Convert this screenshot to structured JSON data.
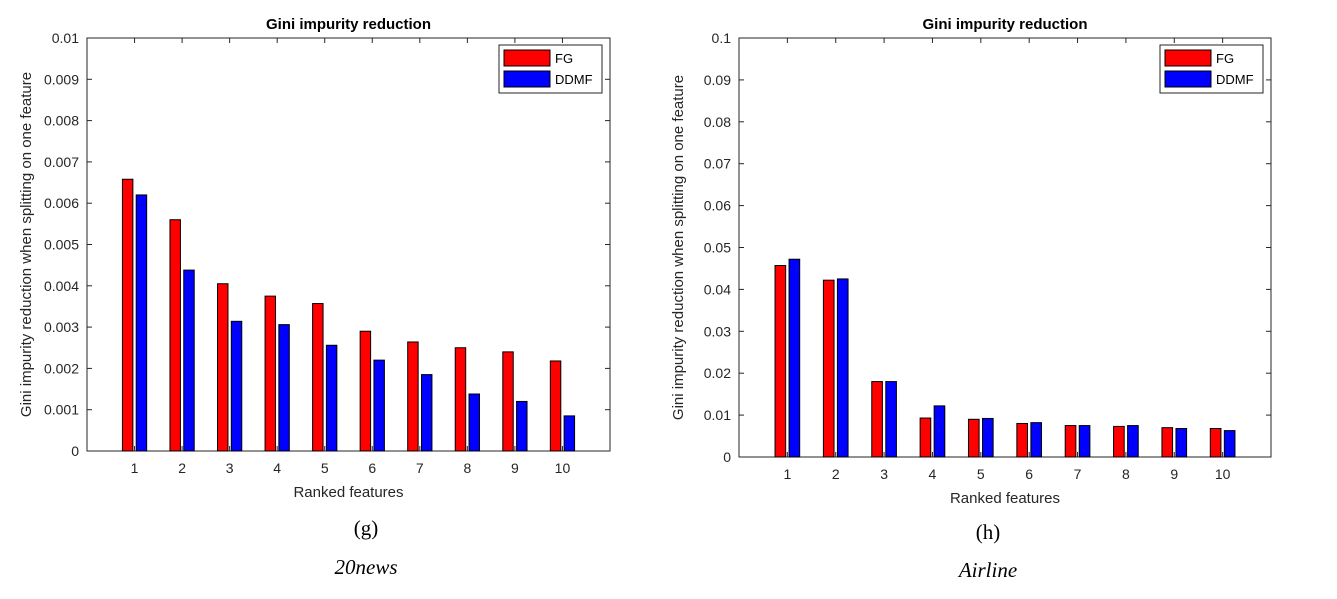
{
  "chart_data": [
    {
      "type": "bar",
      "title": "Gini impurity reduction",
      "xlabel": "Ranked features",
      "ylabel": "Gini impurity reduction when splitting on one feature",
      "categories": [
        "1",
        "2",
        "3",
        "4",
        "5",
        "6",
        "7",
        "8",
        "9",
        "10"
      ],
      "ylim": [
        0,
        0.01
      ],
      "yticks": [
        "0",
        "0.001",
        "0.002",
        "0.003",
        "0.004",
        "0.005",
        "0.006",
        "0.007",
        "0.008",
        "0.009",
        "0.01"
      ],
      "legend_position": "top-right",
      "series": [
        {
          "name": "FG",
          "color": "#ff0000",
          "values": [
            0.00658,
            0.0056,
            0.00405,
            0.00375,
            0.00357,
            0.0029,
            0.00264,
            0.0025,
            0.0024,
            0.00218
          ]
        },
        {
          "name": "DDMF",
          "color": "#0000ff",
          "values": [
            0.0062,
            0.00438,
            0.00314,
            0.00306,
            0.00256,
            0.0022,
            0.00185,
            0.00138,
            0.0012,
            0.00085
          ]
        }
      ],
      "caption_label": "(g)",
      "caption_name": "20news"
    },
    {
      "type": "bar",
      "title": "Gini impurity reduction",
      "xlabel": "Ranked features",
      "ylabel": "Gini impurity reduction when splitting on one feature",
      "categories": [
        "1",
        "2",
        "3",
        "4",
        "5",
        "6",
        "7",
        "8",
        "9",
        "10"
      ],
      "ylim": [
        0,
        0.1
      ],
      "yticks": [
        "0",
        "0.01",
        "0.02",
        "0.03",
        "0.04",
        "0.05",
        "0.06",
        "0.07",
        "0.08",
        "0.09",
        "0.1"
      ],
      "legend_position": "top-right",
      "series": [
        {
          "name": "FG",
          "color": "#ff0000",
          "values": [
            0.0457,
            0.0422,
            0.018,
            0.0093,
            0.009,
            0.008,
            0.0075,
            0.0073,
            0.007,
            0.0068
          ]
        },
        {
          "name": "DDMF",
          "color": "#0000ff",
          "values": [
            0.0472,
            0.0425,
            0.018,
            0.0122,
            0.0092,
            0.0082,
            0.0075,
            0.0075,
            0.0068,
            0.0063
          ]
        }
      ],
      "caption_label": "(h)",
      "caption_name": "Airline"
    }
  ]
}
